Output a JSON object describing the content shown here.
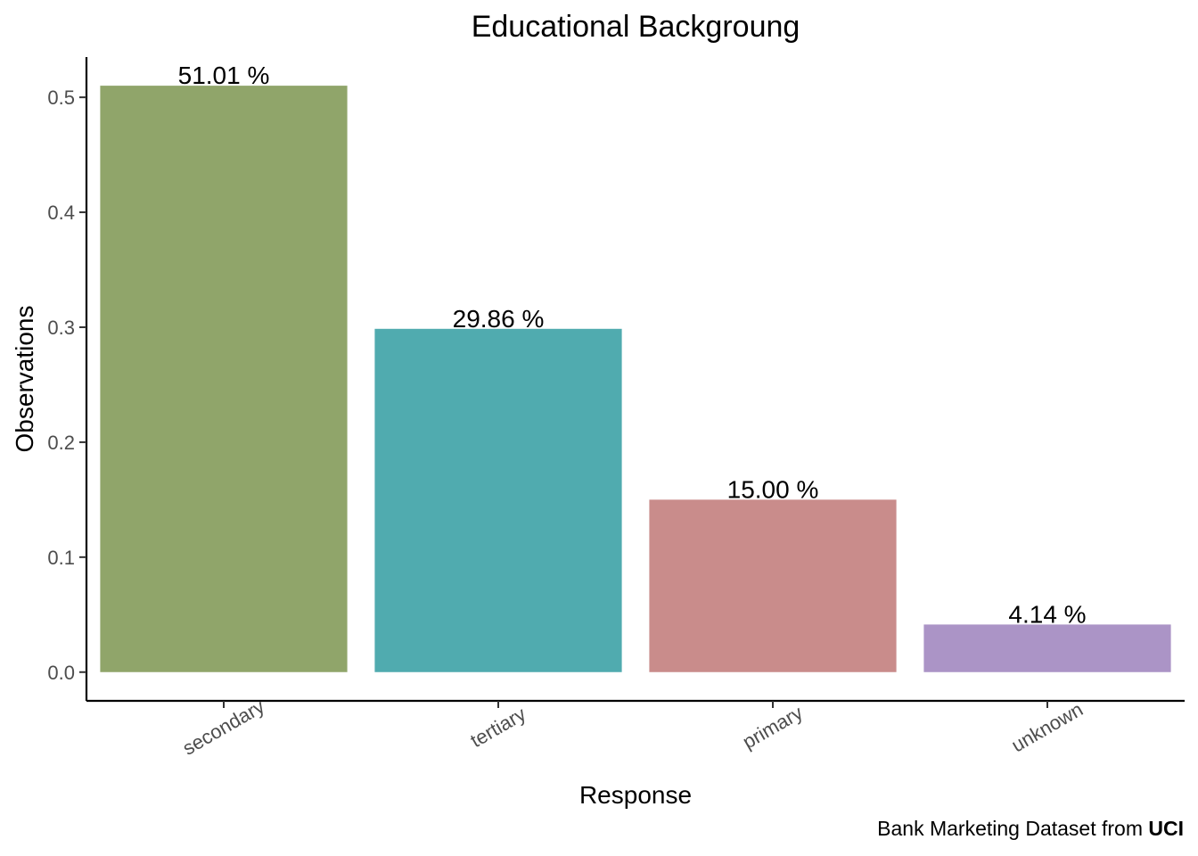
{
  "chart_data": {
    "type": "bar",
    "title": "Educational Backgroung",
    "xlabel": "Response",
    "ylabel": "Observations",
    "categories": [
      "secondary",
      "tertiary",
      "primary",
      "unknown"
    ],
    "values": [
      0.5101,
      0.2986,
      0.15,
      0.0414
    ],
    "data_labels": [
      "51.01 %",
      "29.86 %",
      "15.00 %",
      "4.14 %"
    ],
    "colors": [
      "#90A56A",
      "#50ABAF",
      "#C98C8B",
      "#AB94C6"
    ],
    "yticks": [
      0.0,
      0.1,
      0.2,
      0.3,
      0.4,
      0.5
    ],
    "ytick_labels": [
      "0.0",
      "0.1",
      "0.2",
      "0.3",
      "0.4",
      "0.5"
    ],
    "ylim": [
      -0.025,
      0.535
    ],
    "grid": false,
    "legend": "none"
  },
  "caption": {
    "text": "Bank Marketing Dataset from ",
    "bold": "UCI"
  }
}
